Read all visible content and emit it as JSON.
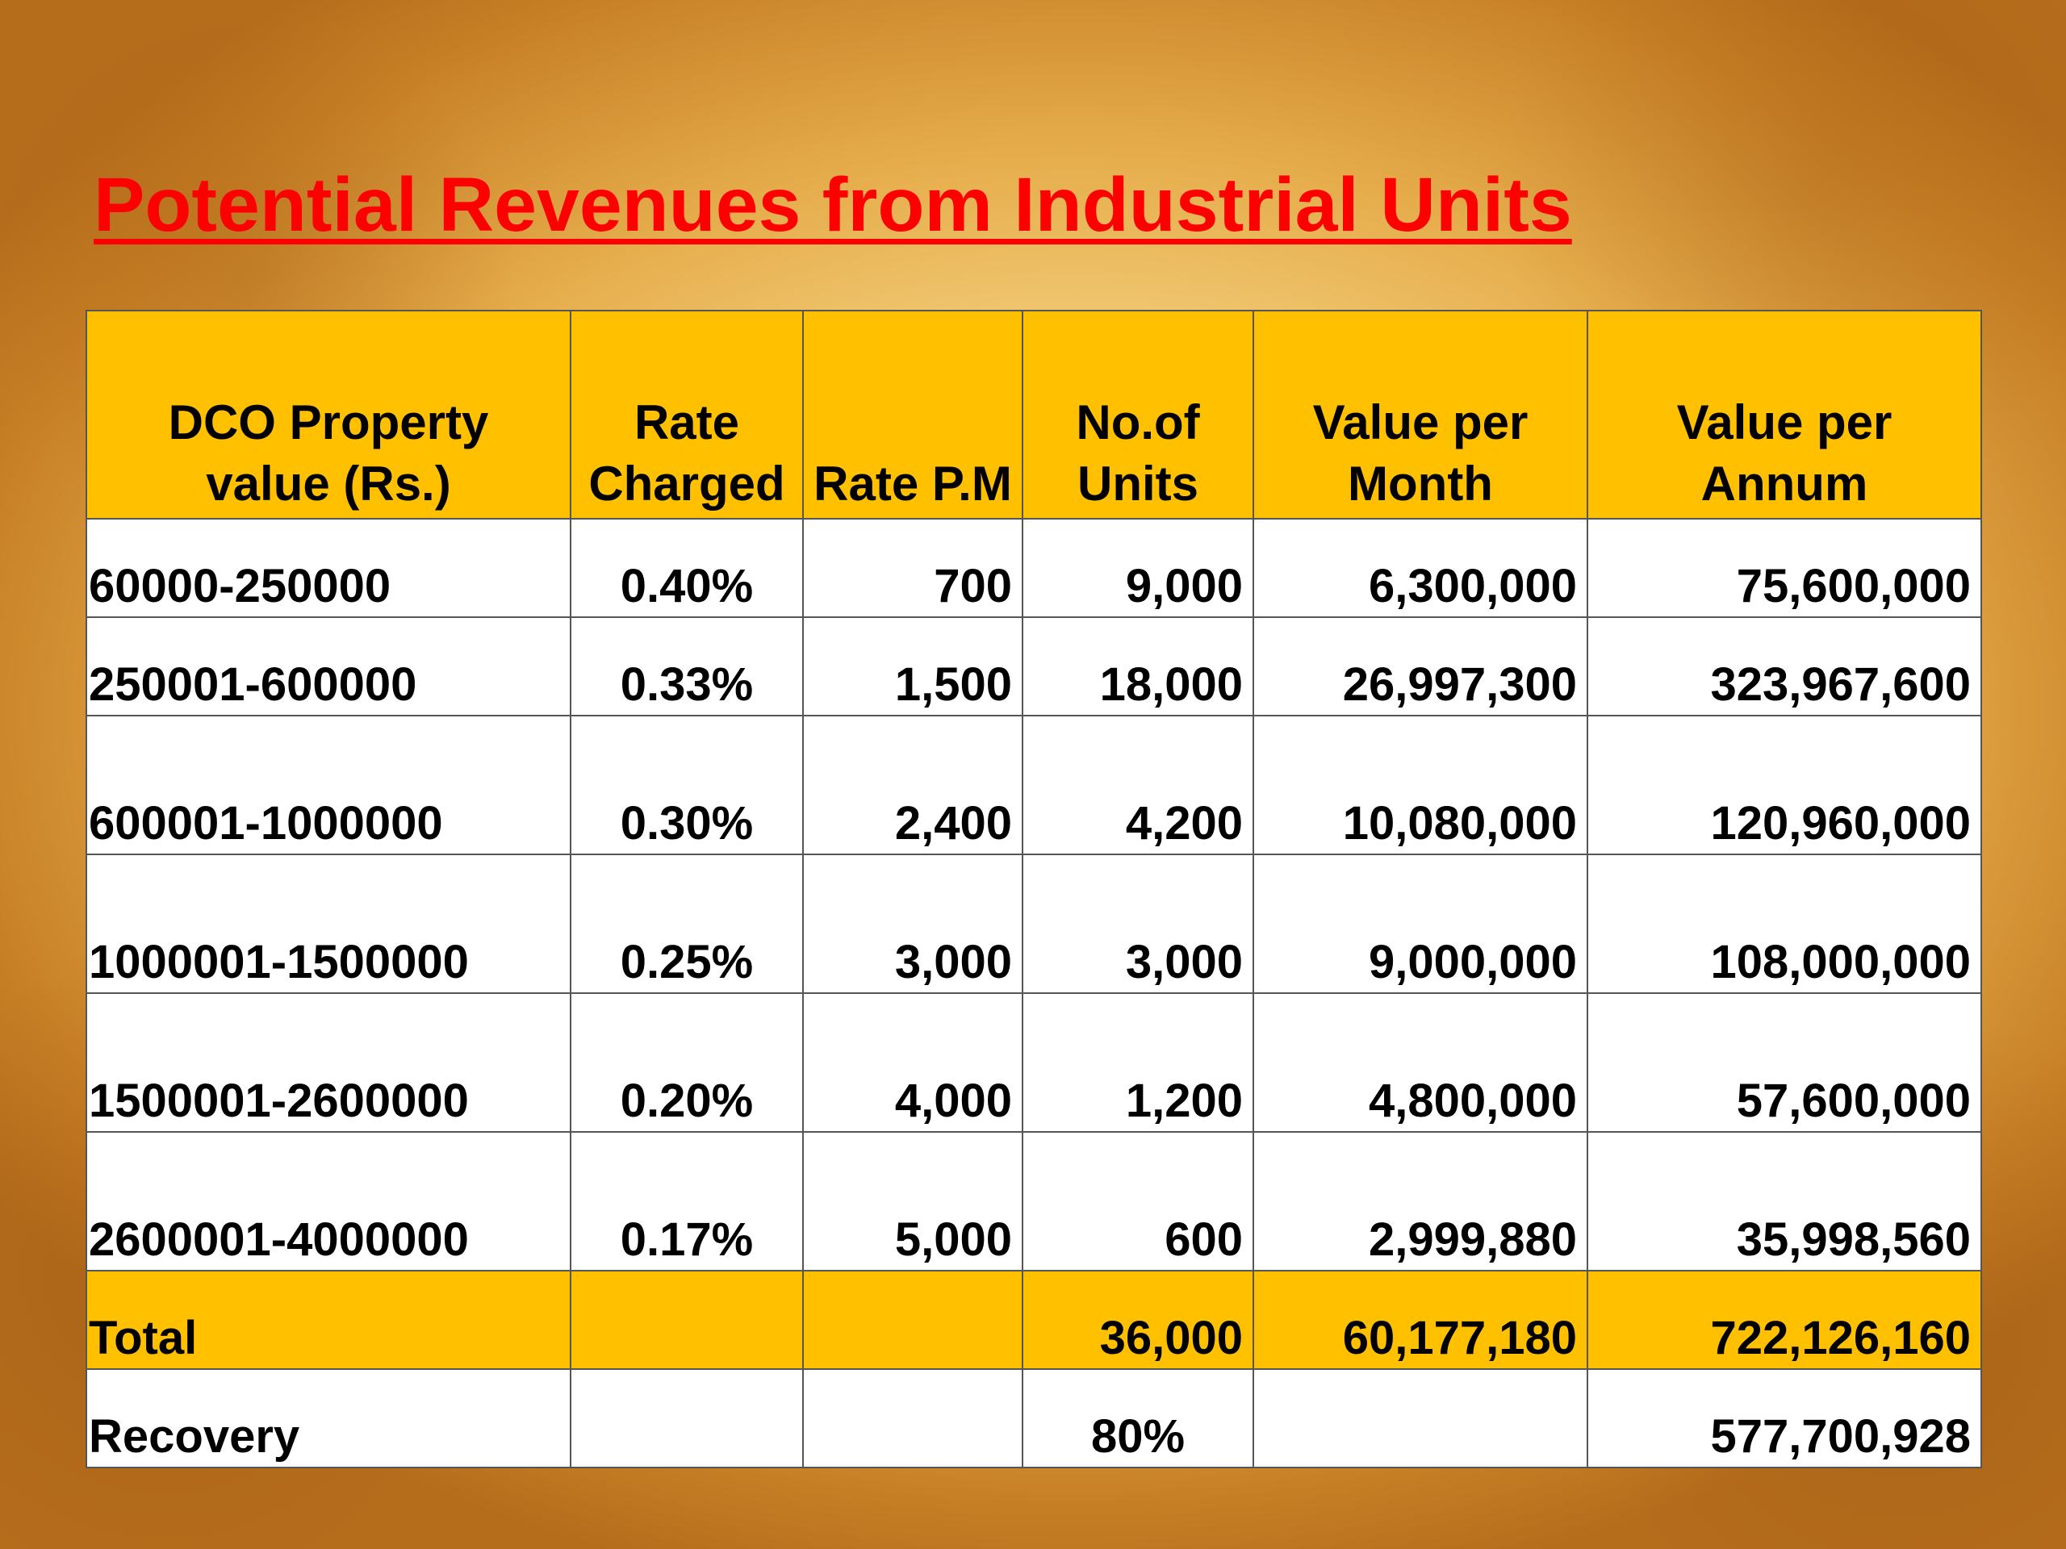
{
  "title": "Potential Revenues from Industrial Units",
  "table": {
    "headers": [
      [
        "DCO Property",
        "value  (Rs.)"
      ],
      [
        "Rate",
        "Charged"
      ],
      [
        "",
        "Rate P.M"
      ],
      [
        "No.of",
        "Units"
      ],
      [
        "Value per",
        "Month"
      ],
      [
        "Value per",
        "Annum"
      ]
    ],
    "rows": [
      [
        "60000-250000",
        "0.40%",
        "700",
        "9,000",
        "6,300,000",
        "75,600,000"
      ],
      [
        "250001-600000",
        "0.33%",
        "1,500",
        "18,000",
        "26,997,300",
        "323,967,600"
      ],
      [
        "600001-1000000",
        "0.30%",
        "2,400",
        "4,200",
        "10,080,000",
        "120,960,000"
      ],
      [
        "1000001-1500000",
        "0.25%",
        "3,000",
        "3,000",
        "9,000,000",
        "108,000,000"
      ],
      [
        "1500001-2600000",
        "0.20%",
        "4,000",
        "1,200",
        "4,800,000",
        "57,600,000"
      ],
      [
        "2600001-4000000",
        "0.17%",
        "5,000",
        "600",
        "2,999,880",
        "35,998,560"
      ]
    ],
    "total": [
      "Total",
      "",
      "",
      "36,000",
      "60,177,180",
      "722,126,160"
    ],
    "recovery": [
      "Recovery",
      "",
      "",
      "80%",
      "",
      "577,700,928"
    ]
  },
  "colors": {
    "title": "#ff0000",
    "header_fill": "#ffc000",
    "body_fill": "#ffffff"
  }
}
